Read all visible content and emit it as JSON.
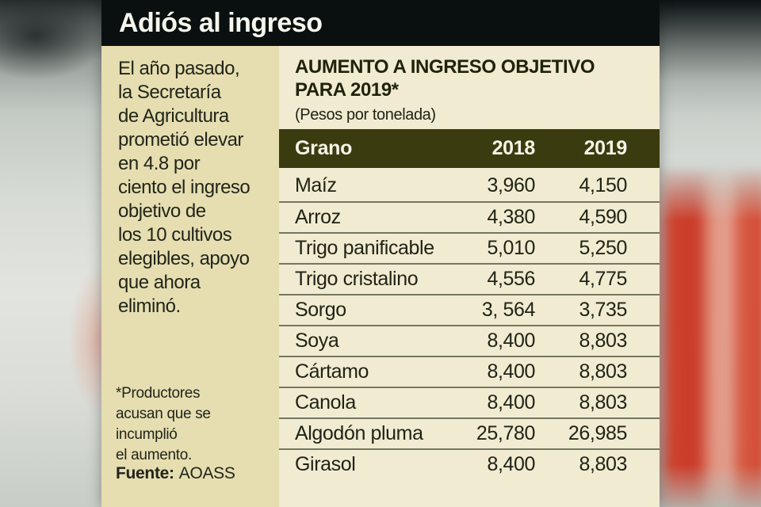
{
  "title": "Adiós al ingreso",
  "sidebar": {
    "paragraph": "El año pasado,\nla Secretaría\nde Agricultura\nprometió elevar\nen 4.8 por\nciento el ingreso\nobjetivo de\nlos 10 cultivos\nelegibles, apoyo\nque ahora\neliminó.",
    "footnote": "*Productores\nacusan que se\nincumplió\nel aumento.",
    "source_label": "Fuente:",
    "source_value": "AOASS"
  },
  "table": {
    "title": "AUMENTO A INGRESO OBJETIVO\nPARA 2019*",
    "subtitle": "(Pesos por tonelada)",
    "columns": [
      "Grano",
      "2018",
      "2019"
    ],
    "rows": [
      [
        "Maíz",
        "3,960",
        "4,150"
      ],
      [
        "Arroz",
        "4,380",
        "4,590"
      ],
      [
        "Trigo panificable",
        "5,010",
        "5,250"
      ],
      [
        "Trigo cristalino",
        "4,556",
        "4,775"
      ],
      [
        "Sorgo",
        "3, 564",
        "3,735"
      ],
      [
        "Soya",
        "8,400",
        "8,803"
      ],
      [
        "Cártamo",
        "8,400",
        "8,803"
      ],
      [
        "Canola",
        "8,400",
        "8,803"
      ],
      [
        "Algodón pluma",
        "25,780",
        "26,985"
      ],
      [
        "Girasol",
        "8,400",
        "8,803"
      ]
    ]
  },
  "colors": {
    "banner_bg": "#0a100f",
    "sidebar_bg": "#e6deb1",
    "table_bg": "#f1ebd1",
    "table_header_bg": "#3b3b10",
    "table_header_text": "#f6f4e7",
    "body_text": "#21251a",
    "row_separator": "#75765f",
    "background_red_accent": "#ce3622"
  },
  "chart_data": {
    "type": "table",
    "title": "AUMENTO A INGRESO OBJETIVO PARA 2019*",
    "subtitle": "Pesos por tonelada",
    "columns": [
      "Grano",
      "2018",
      "2019"
    ],
    "rows": [
      [
        "Maíz",
        "3,960",
        "4,150"
      ],
      [
        "Arroz",
        "4,380",
        "4,590"
      ],
      [
        "Trigo panificable",
        "5,010",
        "5,250"
      ],
      [
        "Trigo cristalino",
        "4,556",
        "4,775"
      ],
      [
        "Sorgo",
        "3, 564",
        "3,735"
      ],
      [
        "Soya",
        "8,400",
        "8,803"
      ],
      [
        "Cártamo",
        "8,400",
        "8,803"
      ],
      [
        "Canola",
        "8,400",
        "8,803"
      ],
      [
        "Algodón pluma",
        "25,780",
        "26,985"
      ],
      [
        "Girasol",
        "8,400",
        "8,803"
      ]
    ]
  }
}
